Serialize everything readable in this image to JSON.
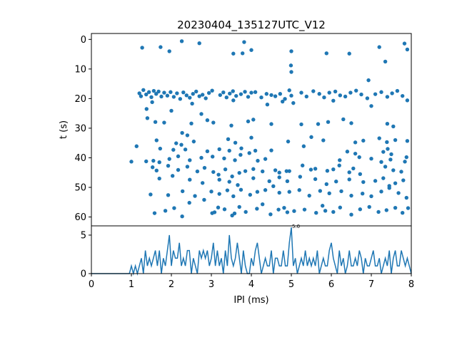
{
  "chart_data": [
    {
      "type": "scatter",
      "title": "20230404_135127UTC_V12",
      "xlabel": "",
      "ylabel": "t (s)",
      "xlim": [
        0,
        8
      ],
      "ylim": [
        63,
        -2
      ],
      "y_inverted": true,
      "yticks": [
        "0",
        "10",
        "20",
        "30",
        "40",
        "50",
        "60"
      ],
      "marker_color": "#1f77b4",
      "grid": false,
      "points": [
        [
          1.27,
          2.8
        ],
        [
          1.73,
          2.6
        ],
        [
          1.95,
          4.0
        ],
        [
          2.26,
          0.6
        ],
        [
          2.7,
          1.3
        ],
        [
          3.55,
          4.8
        ],
        [
          3.78,
          4.7
        ],
        [
          3.82,
          0.9
        ],
        [
          4.0,
          3.6
        ],
        [
          5.0,
          4.0
        ],
        [
          5.88,
          4.7
        ],
        [
          6.45,
          4.8
        ],
        [
          7.2,
          2.6
        ],
        [
          7.35,
          7.5
        ],
        [
          7.83,
          1.4
        ],
        [
          7.9,
          3.4
        ],
        [
          4.99,
          8.8
        ],
        [
          5.0,
          11.0
        ],
        [
          6.93,
          13.8
        ],
        [
          4.95,
          17.2
        ],
        [
          1.2,
          18.2
        ],
        [
          1.24,
          19.2
        ],
        [
          1.3,
          17.1
        ],
        [
          1.37,
          18.6
        ],
        [
          1.44,
          17.8
        ],
        [
          1.5,
          19.5
        ],
        [
          1.56,
          17.4
        ],
        [
          1.62,
          18.4
        ],
        [
          1.68,
          17.6
        ],
        [
          1.75,
          19.3
        ],
        [
          1.82,
          18.0
        ],
        [
          1.9,
          19.0
        ],
        [
          1.98,
          17.8
        ],
        [
          2.06,
          19.4
        ],
        [
          2.14,
          18.2
        ],
        [
          2.22,
          20.1
        ],
        [
          2.3,
          17.9
        ],
        [
          2.38,
          18.9
        ],
        [
          2.46,
          19.7
        ],
        [
          2.54,
          18.4
        ],
        [
          2.62,
          17.6
        ],
        [
          2.7,
          19.2
        ],
        [
          2.78,
          18.7
        ],
        [
          2.86,
          19.9
        ],
        [
          2.94,
          18.1
        ],
        [
          3.02,
          17.3
        ],
        [
          3.22,
          18.8
        ],
        [
          3.3,
          17.9
        ],
        [
          3.38,
          19.6
        ],
        [
          3.46,
          18.3
        ],
        [
          3.54,
          17.5
        ],
        [
          3.62,
          19.1
        ],
        [
          3.74,
          18.5
        ],
        [
          3.84,
          17.7
        ],
        [
          3.92,
          19.4
        ],
        [
          4.0,
          18.0
        ],
        [
          4.1,
          17.8
        ],
        [
          4.25,
          19.6
        ],
        [
          4.38,
          18.4
        ],
        [
          4.4,
          22.0
        ],
        [
          4.5,
          18.8
        ],
        [
          4.6,
          19.2
        ],
        [
          4.72,
          18.4
        ],
        [
          4.84,
          20.1
        ],
        [
          5.0,
          19.0
        ],
        [
          5.25,
          18.0
        ],
        [
          5.38,
          19.3
        ],
        [
          5.55,
          17.5
        ],
        [
          5.7,
          18.4
        ],
        [
          5.82,
          19.6
        ],
        [
          5.95,
          18.0
        ],
        [
          6.1,
          17.6
        ],
        [
          6.22,
          18.9
        ],
        [
          6.35,
          19.3
        ],
        [
          6.48,
          18.0
        ],
        [
          6.62,
          17.3
        ],
        [
          6.75,
          18.6
        ],
        [
          6.9,
          19.9
        ],
        [
          7.0,
          22.5
        ],
        [
          7.1,
          18.5
        ],
        [
          7.25,
          17.8
        ],
        [
          7.4,
          19.4
        ],
        [
          7.52,
          18.2
        ],
        [
          7.65,
          17.4
        ],
        [
          7.78,
          19.1
        ],
        [
          7.9,
          20.6
        ],
        [
          1.52,
          21.2
        ],
        [
          2.52,
          21.7
        ],
        [
          3.55,
          20.6
        ],
        [
          4.78,
          21.0
        ],
        [
          5.05,
          21.5
        ],
        [
          6.05,
          20.7
        ],
        [
          1.38,
          23.5
        ],
        [
          2.0,
          24.1
        ],
        [
          2.75,
          25.2
        ],
        [
          1.4,
          26.6
        ],
        [
          1.6,
          27.9
        ],
        [
          1.82,
          28.1
        ],
        [
          2.5,
          28.4
        ],
        [
          2.9,
          27.3
        ],
        [
          3.05,
          28.1
        ],
        [
          3.5,
          29.1
        ],
        [
          3.92,
          27.7
        ],
        [
          4.05,
          27.1
        ],
        [
          4.5,
          28.6
        ],
        [
          5.25,
          28.7
        ],
        [
          5.67,
          28.6
        ],
        [
          5.92,
          27.9
        ],
        [
          6.3,
          27.0
        ],
        [
          6.5,
          28.3
        ],
        [
          7.4,
          28.5
        ],
        [
          7.55,
          29.4
        ],
        [
          2.27,
          31.6
        ],
        [
          2.4,
          32.4
        ],
        [
          1.63,
          34.1
        ],
        [
          2.12,
          35.1
        ],
        [
          2.56,
          34.5
        ],
        [
          3.42,
          33.7
        ],
        [
          3.6,
          34.9
        ],
        [
          4.0,
          33.2
        ],
        [
          4.92,
          34.5
        ],
        [
          5.5,
          33.0
        ],
        [
          5.8,
          34.1
        ],
        [
          6.6,
          34.8
        ],
        [
          6.8,
          34.2
        ],
        [
          7.2,
          33.4
        ],
        [
          7.39,
          34.7
        ],
        [
          7.6,
          34.0
        ],
        [
          7.9,
          34.3
        ],
        [
          1.13,
          36.1
        ],
        [
          1.72,
          36.9
        ],
        [
          2.05,
          37.3
        ],
        [
          2.25,
          35.6
        ],
        [
          2.35,
          37.2
        ],
        [
          2.9,
          37.8
        ],
        [
          3.2,
          37.1
        ],
        [
          3.45,
          37.6
        ],
        [
          3.75,
          36.8
        ],
        [
          4.1,
          37.6
        ],
        [
          4.5,
          37.5
        ],
        [
          5.31,
          36.1
        ],
        [
          6.4,
          37.9
        ],
        [
          6.6,
          38.6
        ],
        [
          7.3,
          38.0
        ],
        [
          7.41,
          37.0
        ],
        [
          7.5,
          38.8
        ],
        [
          1.0,
          41.3
        ],
        [
          1.37,
          41.2
        ],
        [
          1.55,
          41.0
        ],
        [
          1.7,
          41.5
        ],
        [
          1.95,
          40.4
        ],
        [
          2.17,
          39.5
        ],
        [
          2.46,
          40.8
        ],
        [
          2.75,
          40.0
        ],
        [
          3.03,
          39.6
        ],
        [
          3.32,
          40.2
        ],
        [
          3.59,
          40.8
        ],
        [
          3.73,
          39.0
        ],
        [
          3.95,
          38.4
        ],
        [
          4.16,
          41.0
        ],
        [
          4.35,
          40.4
        ],
        [
          6.21,
          40.8
        ],
        [
          6.7,
          39.8
        ],
        [
          7.0,
          40.3
        ],
        [
          7.25,
          41.4
        ],
        [
          7.48,
          40.6
        ],
        [
          7.88,
          39.8
        ],
        [
          7.84,
          41.3
        ],
        [
          1.53,
          43.2
        ],
        [
          1.63,
          44.3
        ],
        [
          1.92,
          42.7
        ],
        [
          2.17,
          44.1
        ],
        [
          2.4,
          43.0
        ],
        [
          2.65,
          44.6
        ],
        [
          2.83,
          43.4
        ],
        [
          3.05,
          44.8
        ],
        [
          3.18,
          45.7
        ],
        [
          3.35,
          43.9
        ],
        [
          3.52,
          46.3
        ],
        [
          3.7,
          45.1
        ],
        [
          3.85,
          44.5
        ],
        [
          4.05,
          43.8
        ],
        [
          4.28,
          44.6
        ],
        [
          4.6,
          44.2
        ],
        [
          4.7,
          45.0
        ],
        [
          4.88,
          44.5
        ],
        [
          4.95,
          44.5
        ],
        [
          5.28,
          42.6
        ],
        [
          5.49,
          44.0
        ],
        [
          5.6,
          43.7
        ],
        [
          5.9,
          44.4
        ],
        [
          6.05,
          43.9
        ],
        [
          6.2,
          42.6
        ],
        [
          6.45,
          44.9
        ],
        [
          6.55,
          43.6
        ],
        [
          6.72,
          45.5
        ],
        [
          7.35,
          43.0
        ],
        [
          7.55,
          44.2
        ],
        [
          7.75,
          44.7
        ],
        [
          1.7,
          47.0
        ],
        [
          2.03,
          46.1
        ],
        [
          2.46,
          47.4
        ],
        [
          2.78,
          48.5
        ],
        [
          3.2,
          47.4
        ],
        [
          3.45,
          48.1
        ],
        [
          3.66,
          49.2
        ],
        [
          4.05,
          46.9
        ],
        [
          4.45,
          47.9
        ],
        [
          4.7,
          46.6
        ],
        [
          4.9,
          47.9
        ],
        [
          5.22,
          46.4
        ],
        [
          5.6,
          47.2
        ],
        [
          5.88,
          48.9
        ],
        [
          6.12,
          48.0
        ],
        [
          6.45,
          47.3
        ],
        [
          6.8,
          48.2
        ],
        [
          7.1,
          47.8
        ],
        [
          7.3,
          46.9
        ],
        [
          7.45,
          49.5
        ],
        [
          7.6,
          48.6
        ],
        [
          7.8,
          47.6
        ],
        [
          1.48,
          52.4
        ],
        [
          1.92,
          52.6
        ],
        [
          2.28,
          51.3
        ],
        [
          2.59,
          52.9
        ],
        [
          3.0,
          51.4
        ],
        [
          3.2,
          52.2
        ],
        [
          3.4,
          51.0
        ],
        [
          3.55,
          53.0
        ],
        [
          3.74,
          50.8
        ],
        [
          3.97,
          52.5
        ],
        [
          4.15,
          51.5
        ],
        [
          4.35,
          50.9
        ],
        [
          4.55,
          49.6
        ],
        [
          4.7,
          51.8
        ],
        [
          4.95,
          51.5
        ],
        [
          5.2,
          50.9
        ],
        [
          5.45,
          52.8
        ],
        [
          5.72,
          51.2
        ],
        [
          5.95,
          52.0
        ],
        [
          6.25,
          51.3
        ],
        [
          6.5,
          52.8
        ],
        [
          6.78,
          52.1
        ],
        [
          7.0,
          53.0
        ],
        [
          7.25,
          51.4
        ],
        [
          7.45,
          50.2
        ],
        [
          7.68,
          51.9
        ],
        [
          7.88,
          53.5
        ],
        [
          1.58,
          58.7
        ],
        [
          1.85,
          57.9
        ],
        [
          2.07,
          57.0
        ],
        [
          2.27,
          59.8
        ],
        [
          2.45,
          55.2
        ],
        [
          2.82,
          54.2
        ],
        [
          3.02,
          58.7
        ],
        [
          3.17,
          56.8
        ],
        [
          3.33,
          57.4
        ],
        [
          3.52,
          59.5
        ],
        [
          3.7,
          56.6
        ],
        [
          3.86,
          58.3
        ],
        [
          4.14,
          57.2
        ],
        [
          4.28,
          55.7
        ],
        [
          4.48,
          59.1
        ],
        [
          4.68,
          57.5
        ],
        [
          4.9,
          58.4
        ],
        [
          5.07,
          58.0
        ],
        [
          5.33,
          57.5
        ],
        [
          5.62,
          58.6
        ],
        [
          5.85,
          57.9
        ],
        [
          6.05,
          58.3
        ],
        [
          6.22,
          56.8
        ],
        [
          6.5,
          59.2
        ],
        [
          6.72,
          57.4
        ],
        [
          6.95,
          56.6
        ],
        [
          7.18,
          58.3
        ],
        [
          7.38,
          57.7
        ],
        [
          7.6,
          56.9
        ],
        [
          7.78,
          58.6
        ],
        [
          7.92,
          57.0
        ],
        [
          3.08,
          58.4
        ],
        [
          3.58,
          58.8
        ],
        [
          4.82,
          56.9
        ],
        [
          5.78,
          56.2
        ]
      ]
    },
    {
      "type": "line",
      "title": "",
      "xlabel": "IPI (ms)",
      "ylabel": "",
      "xlim": [
        0,
        8
      ],
      "ylim": [
        0,
        6.2
      ],
      "xticks": [
        "0",
        "1",
        "2",
        "3",
        "4",
        "5",
        "6",
        "7",
        "8"
      ],
      "yticks": [
        "0",
        "5"
      ],
      "line_color": "#1f77b4",
      "grid": false,
      "peak_annotation": {
        "x": 5.0,
        "y": 6,
        "text": "5.0"
      },
      "x_start": 0,
      "x_step": 0.05,
      "values": [
        0,
        0,
        0,
        0,
        0,
        0,
        0,
        0,
        0,
        0,
        0,
        0,
        0,
        0,
        0,
        0,
        0,
        0,
        0,
        0,
        1,
        0,
        1,
        0,
        1,
        2,
        0,
        3,
        1,
        2,
        1,
        2,
        3,
        1,
        3,
        0,
        2,
        1,
        3,
        5,
        1,
        3,
        2,
        2,
        4,
        1,
        2,
        1,
        3,
        3,
        0,
        2,
        1,
        0,
        3,
        2,
        3,
        2,
        3,
        1,
        2,
        4,
        1,
        3,
        1,
        2,
        0,
        3,
        1,
        5,
        2,
        1,
        2,
        4,
        2,
        0,
        3,
        1,
        0,
        0,
        2,
        1,
        3,
        4,
        2,
        0,
        1,
        2,
        1,
        1,
        3,
        0,
        2,
        2,
        1,
        1,
        3,
        1,
        1,
        4,
        6,
        1,
        2,
        0,
        1,
        2,
        1,
        3,
        1,
        2,
        1,
        2,
        1,
        3,
        0,
        1,
        2,
        1,
        1,
        3,
        4,
        2,
        1,
        0,
        3,
        1,
        2,
        0,
        1,
        3,
        1,
        1,
        2,
        1,
        3,
        2,
        0,
        2,
        1,
        1,
        2,
        3,
        1,
        1,
        2,
        0,
        1,
        2,
        1,
        3,
        0,
        2,
        3,
        1,
        1,
        3,
        2,
        1,
        2,
        1,
        0
      ]
    }
  ]
}
